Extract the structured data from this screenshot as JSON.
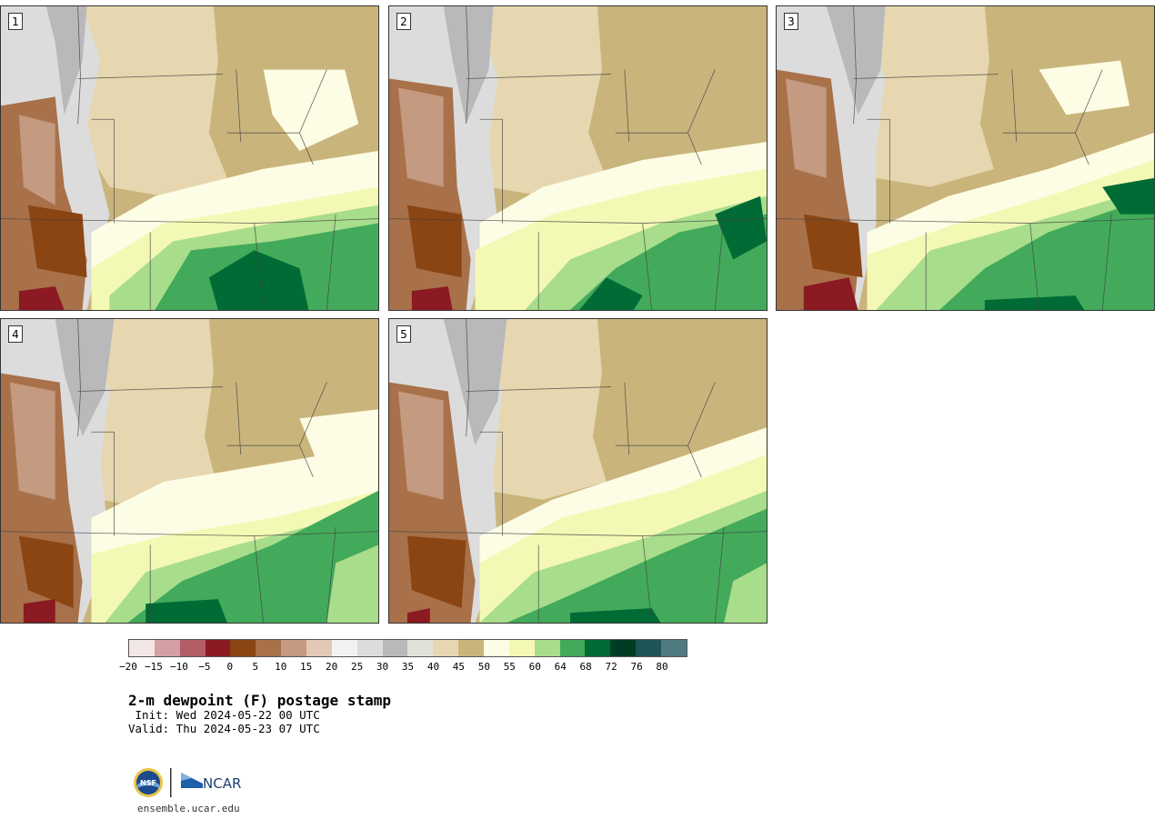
{
  "panels": [
    {
      "label": "1"
    },
    {
      "label": "2"
    },
    {
      "label": "3"
    },
    {
      "label": "4"
    },
    {
      "label": "5"
    }
  ],
  "colorbar": {
    "colors": [
      "#f3e6e6",
      "#d4a0a6",
      "#b35e66",
      "#8b1a22",
      "#8b4513",
      "#a8714a",
      "#c49a80",
      "#e3c8b8",
      "#f2f2f2",
      "#dcdcdc",
      "#b9b9bb",
      "#e1e1d9",
      "#e6d7b0",
      "#c9b57c",
      "#fdfde5",
      "#f4f8b5",
      "#a8dd8b",
      "#42aa5a",
      "#006b35",
      "#003c23",
      "#1d5556",
      "#4f7a7f"
    ],
    "ticks": [
      "−20",
      "−15",
      "−10",
      "−5",
      "0",
      "5",
      "10",
      "15",
      "20",
      "25",
      "30",
      "35",
      "40",
      "45",
      "50",
      "55",
      "60",
      "64",
      "68",
      "72",
      "76",
      "80"
    ]
  },
  "title": "2-m dewpoint (F) postage stamp",
  "init": " Init: Wed 2024-05-22 00 UTC",
  "valid": "Valid: Thu 2024-05-23 07 UTC",
  "logos": {
    "left_text": "NSF",
    "right_text": "NCAR"
  },
  "site": "ensemble.ucar.edu",
  "palette": {
    "dark_brown": "#8b4513",
    "brown": "#a8714a",
    "light_brown": "#c49a80",
    "gray_light": "#dcdcdc",
    "gray": "#b9b9bb",
    "tan": "#c9b57c",
    "cream": "#fdfde5",
    "light_yellow": "#f4f8b5",
    "light_green": "#a8dd8b",
    "green": "#42aa5a",
    "dark_green": "#006b35",
    "red": "#8b1a22"
  }
}
